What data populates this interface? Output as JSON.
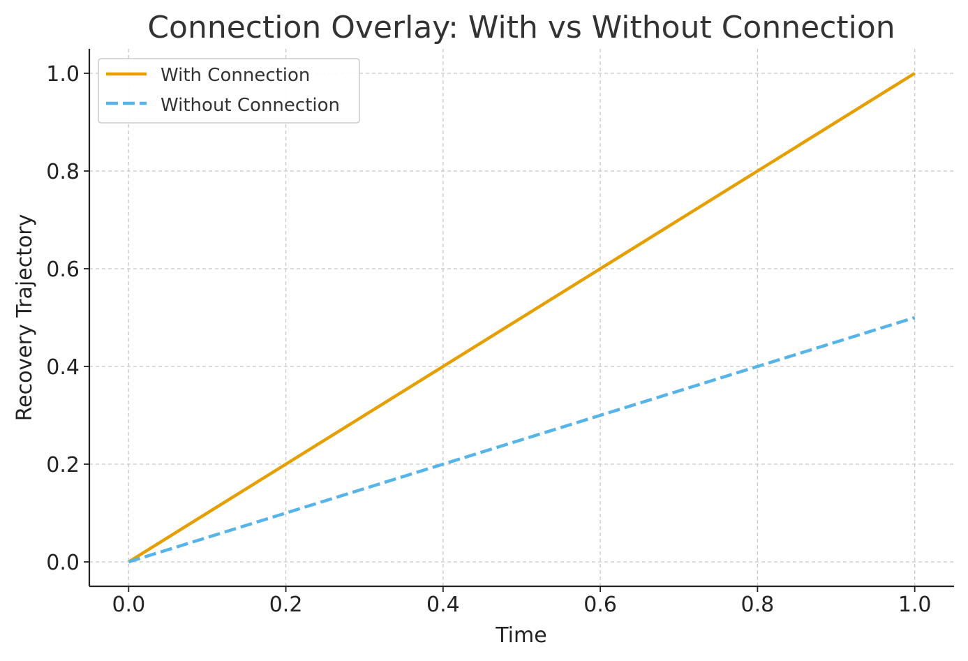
{
  "chart_data": {
    "type": "line",
    "title": "Connection Overlay: With vs Without Connection",
    "xlabel": "Time",
    "ylabel": "Recovery Trajectory",
    "xlim": [
      -0.05,
      1.05
    ],
    "ylim": [
      -0.05,
      1.05
    ],
    "x_ticks": [
      0.0,
      0.2,
      0.4,
      0.6,
      0.8,
      1.0
    ],
    "y_ticks": [
      0.0,
      0.2,
      0.4,
      0.6,
      0.8,
      1.0
    ],
    "x_tick_labels": [
      "0.0",
      "0.2",
      "0.4",
      "0.6",
      "0.8",
      "1.0"
    ],
    "y_tick_labels": [
      "0.0",
      "0.2",
      "0.4",
      "0.6",
      "0.8",
      "1.0"
    ],
    "grid": true,
    "legend_position": "top-left",
    "series": [
      {
        "name": "With Connection",
        "color": "#E69F00",
        "style": "solid",
        "x": [
          0.0,
          0.2,
          0.4,
          0.6,
          0.8,
          1.0
        ],
        "y": [
          0.0,
          0.2,
          0.4,
          0.6,
          0.8,
          1.0
        ]
      },
      {
        "name": "Without Connection",
        "color": "#56B4E9",
        "style": "dashed",
        "x": [
          0.0,
          0.2,
          0.4,
          0.6,
          0.8,
          1.0
        ],
        "y": [
          0.0,
          0.1,
          0.2,
          0.3,
          0.4,
          0.5
        ]
      }
    ]
  }
}
